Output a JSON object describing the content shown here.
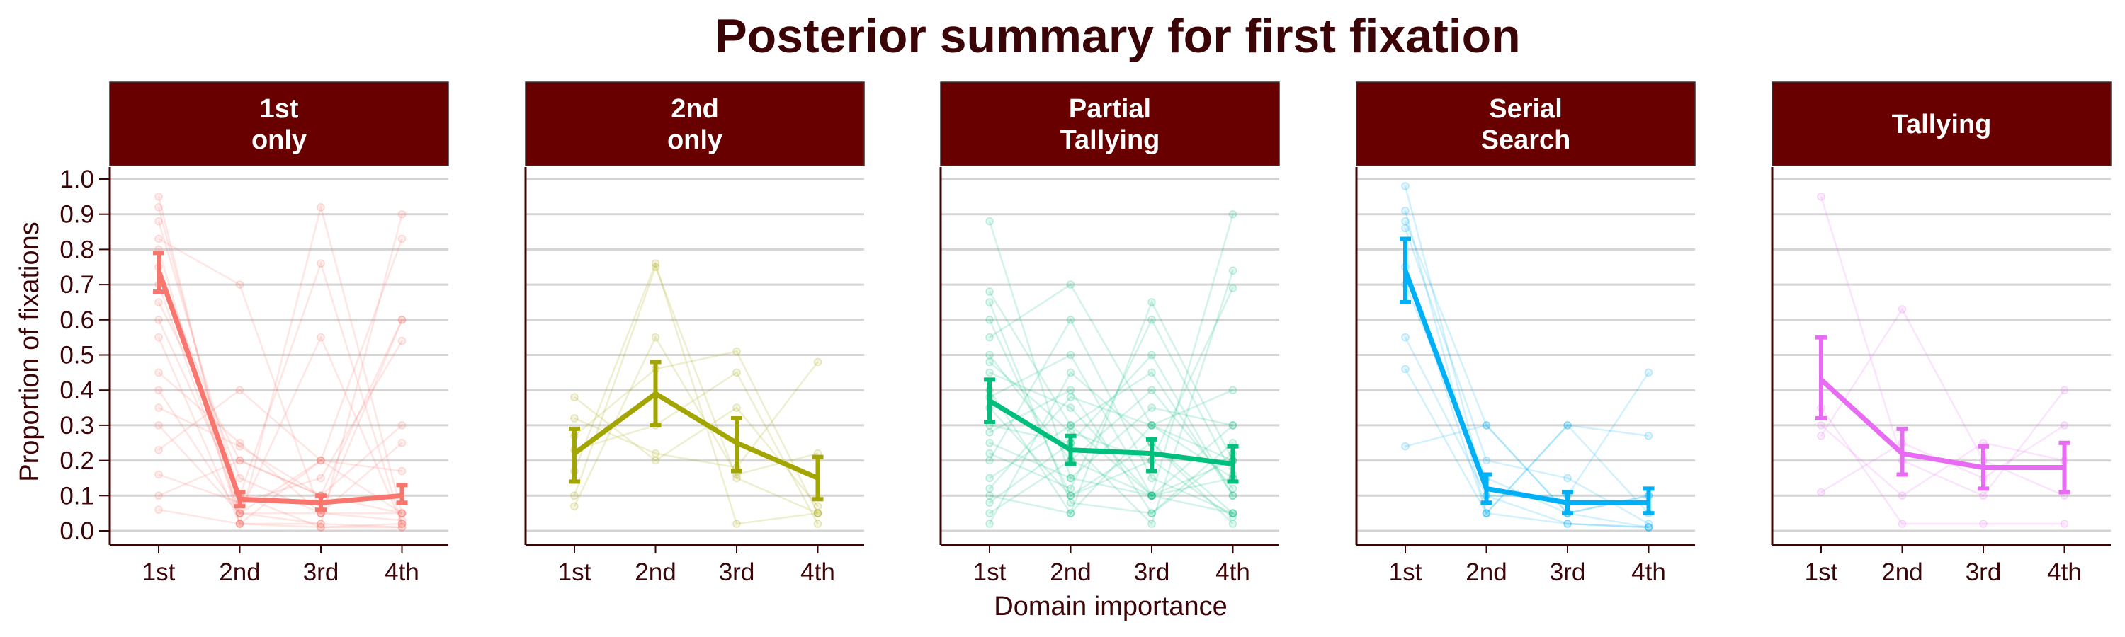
{
  "chart_data": {
    "type": "line",
    "title": "Posterior summary for first fixation",
    "xlabel": "Domain importance",
    "ylabel": "Proportion of fixations",
    "categories": [
      "1st",
      "2nd",
      "3rd",
      "4th"
    ],
    "ylim": [
      0,
      1
    ],
    "yticks": [
      "0.0",
      "0.1",
      "0.2",
      "0.3",
      "0.4",
      "0.5",
      "0.6",
      "0.7",
      "0.8",
      "0.9",
      "1.0"
    ],
    "grid": "horizontal",
    "legend": "none",
    "strip_color": "#680000",
    "axis_color": "#3b0406",
    "panels": [
      {
        "strip": [
          "1st",
          "only"
        ],
        "color": "#F8766D",
        "mean": [
          0.74,
          0.09,
          0.08,
          0.1
        ],
        "lower": [
          0.68,
          0.07,
          0.06,
          0.08
        ],
        "upper": [
          0.79,
          0.11,
          0.1,
          0.13
        ],
        "individuals": [
          [
            0.92,
            0.05,
            0.02,
            0.01
          ],
          [
            0.88,
            0.1,
            0.01,
            0.01
          ],
          [
            0.83,
            0.7,
            0.05,
            0.03
          ],
          [
            0.8,
            0.02,
            0.92,
            0.05
          ],
          [
            0.75,
            0.15,
            0.05,
            0.05
          ],
          [
            0.7,
            0.05,
            0.2,
            0.05
          ],
          [
            0.65,
            0.2,
            0.1,
            0.05
          ],
          [
            0.6,
            0.1,
            0.76,
            0.02
          ],
          [
            0.55,
            0.02,
            0.2,
            0.83
          ],
          [
            0.45,
            0.25,
            0.05,
            0.25
          ],
          [
            0.4,
            0.05,
            0.55,
            0.02
          ],
          [
            0.35,
            0.24,
            0.1,
            0.3
          ],
          [
            0.3,
            0.05,
            0.05,
            0.6
          ],
          [
            0.23,
            0.4,
            0.2,
            0.17
          ],
          [
            0.16,
            0.08,
            0.15,
            0.54
          ],
          [
            0.1,
            0.2,
            0.1,
            0.6
          ],
          [
            0.06,
            0.02,
            0.02,
            0.9
          ],
          [
            0.95,
            0.02,
            0.01,
            0.02
          ]
        ]
      },
      {
        "strip": [
          "2nd",
          "only"
        ],
        "color": "#A3A500",
        "mean": [
          0.22,
          0.39,
          0.25,
          0.15
        ],
        "lower": [
          0.14,
          0.3,
          0.17,
          0.09
        ],
        "upper": [
          0.29,
          0.48,
          0.32,
          0.21
        ],
        "individuals": [
          [
            0.17,
            0.76,
            0.02,
            0.05
          ],
          [
            0.38,
            0.2,
            0.35,
            0.07
          ],
          [
            0.07,
            0.55,
            0.16,
            0.22
          ],
          [
            0.27,
            0.46,
            0.51,
            0.05
          ],
          [
            0.32,
            0.22,
            0.18,
            0.48
          ],
          [
            0.1,
            0.75,
            0.15,
            0.05
          ],
          [
            0.23,
            0.3,
            0.45,
            0.02
          ]
        ]
      },
      {
        "strip": [
          "Partial",
          "Tallying"
        ],
        "color": "#00BF7D",
        "mean": [
          0.37,
          0.23,
          0.22,
          0.19
        ],
        "lower": [
          0.31,
          0.19,
          0.17,
          0.14
        ],
        "upper": [
          0.43,
          0.27,
          0.26,
          0.24
        ],
        "individuals": [
          [
            0.88,
            0.15,
            0.1,
            0.05
          ],
          [
            0.68,
            0.3,
            0.1,
            0.2
          ],
          [
            0.6,
            0.1,
            0.25,
            0.05
          ],
          [
            0.55,
            0.7,
            0.3,
            0.15
          ],
          [
            0.5,
            0.2,
            0.4,
            0.12
          ],
          [
            0.45,
            0.35,
            0.1,
            0.9
          ],
          [
            0.4,
            0.05,
            0.65,
            0.2
          ],
          [
            0.38,
            0.5,
            0.1,
            0.3
          ],
          [
            0.35,
            0.1,
            0.2,
            0.69
          ],
          [
            0.3,
            0.25,
            0.5,
            0.1
          ],
          [
            0.28,
            0.4,
            0.05,
            0.25
          ],
          [
            0.25,
            0.15,
            0.35,
            0.3
          ],
          [
            0.2,
            0.6,
            0.15,
            0.05
          ],
          [
            0.15,
            0.3,
            0.45,
            0.1
          ],
          [
            0.1,
            0.05,
            0.3,
            0.4
          ],
          [
            0.05,
            0.2,
            0.1,
            0.15
          ],
          [
            0.02,
            0.45,
            0.25,
            0.02
          ],
          [
            0.65,
            0.08,
            0.05,
            0.22
          ],
          [
            0.48,
            0.28,
            0.2,
            0.04
          ],
          [
            0.22,
            0.12,
            0.6,
            0.16
          ],
          [
            0.12,
            0.38,
            0.3,
            0.2
          ],
          [
            0.08,
            0.25,
            0.02,
            0.74
          ]
        ]
      },
      {
        "strip": [
          "Serial",
          "Search"
        ],
        "color": "#00B0F6",
        "mean": [
          0.74,
          0.12,
          0.08,
          0.08
        ],
        "lower": [
          0.65,
          0.08,
          0.05,
          0.05
        ],
        "upper": [
          0.83,
          0.16,
          0.11,
          0.12
        ],
        "individuals": [
          [
            0.98,
            0.1,
            0.02,
            0.01
          ],
          [
            0.91,
            0.05,
            0.02,
            0.01
          ],
          [
            0.88,
            0.3,
            0.05,
            0.01
          ],
          [
            0.86,
            0.2,
            0.15,
            0.02
          ],
          [
            0.75,
            0.05,
            0.3,
            0.05
          ],
          [
            0.7,
            0.15,
            0.05,
            0.1
          ],
          [
            0.55,
            0.1,
            0.1,
            0.45
          ],
          [
            0.46,
            0.05,
            0.3,
            0.27
          ],
          [
            0.24,
            0.3,
            0.05,
            0.1
          ]
        ]
      },
      {
        "strip": [
          "Tallying"
        ],
        "color": "#E76BF3",
        "mean": [
          0.43,
          0.22,
          0.18,
          0.18
        ],
        "lower": [
          0.32,
          0.16,
          0.12,
          0.11
        ],
        "upper": [
          0.55,
          0.29,
          0.24,
          0.25
        ],
        "individuals": [
          [
            0.95,
            0.2,
            0.1,
            0.4
          ],
          [
            0.27,
            0.63,
            0.2,
            0.1
          ],
          [
            0.11,
            0.25,
            0.15,
            0.3
          ],
          [
            0.35,
            0.02,
            0.02,
            0.02
          ],
          [
            0.3,
            0.1,
            0.25,
            0.2
          ]
        ]
      }
    ]
  }
}
